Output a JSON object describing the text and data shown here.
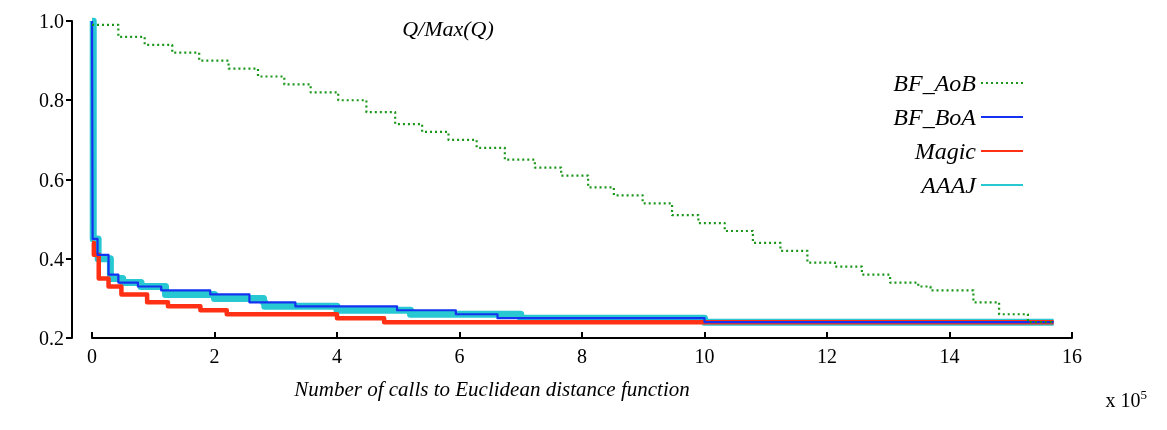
{
  "chart_data": {
    "type": "step",
    "title": "Q/Max(Q)",
    "xlabel": "Number of calls to Euclidean distance function",
    "annotations": [
      "x 10$^{5}$"
    ],
    "xlim": [
      0,
      16
    ],
    "xticks": [
      0,
      2,
      4,
      6,
      8,
      10,
      12,
      14,
      16
    ],
    "ylim": [
      0.2,
      1.0
    ],
    "yticks": [
      0.2,
      0.4,
      0.6,
      0.8,
      {
        "value": 1.0,
        "label": "1.0"
      }
    ],
    "grid": false,
    "legend": "top right",
    "marker": "none",
    "series": [
      {
        "name": "BF_AoB",
        "color": "#1a961a",
        "line_style": "dotted",
        "x": [
          0,
          0.43,
          0.86,
          1.31,
          1.75,
          2.23,
          2.71,
          3.14,
          3.57,
          4.02,
          4.48,
          4.95,
          5.39,
          5.82,
          6.28,
          6.74,
          7.23,
          7.66,
          8.1,
          8.52,
          8.99,
          9.47,
          9.9,
          10.33,
          10.79,
          11.24,
          11.68,
          12.13,
          12.57,
          13.03,
          13.49,
          13.69,
          14.39,
          14.81,
          15.28,
          15.71
        ],
        "values": [
          0.99,
          0.96,
          0.94,
          0.92,
          0.9,
          0.88,
          0.86,
          0.84,
          0.82,
          0.8,
          0.77,
          0.74,
          0.72,
          0.7,
          0.68,
          0.65,
          0.63,
          0.61,
          0.58,
          0.56,
          0.54,
          0.51,
          0.49,
          0.47,
          0.44,
          0.42,
          0.39,
          0.38,
          0.36,
          0.34,
          0.33,
          0.32,
          0.29,
          0.26,
          0.24,
          0.24
        ]
      },
      {
        "name": "BF_BoA",
        "color": "#1432f0",
        "line_style": "solid",
        "x": [
          0,
          0.01,
          0.09,
          0.27,
          0.43,
          0.75,
          1.13,
          1.93,
          2.57,
          3.27,
          3.32,
          4.98,
          5.94,
          6.62,
          8.6,
          10,
          12,
          14,
          15.7
        ],
        "values": [
          1.0,
          0.45,
          0.41,
          0.36,
          0.34,
          0.33,
          0.32,
          0.31,
          0.29,
          0.29,
          0.28,
          0.27,
          0.26,
          0.25,
          0.25,
          0.24,
          0.24,
          0.24,
          0.24
        ]
      },
      {
        "name": "Magic",
        "color": "#ff3014",
        "line_style": "solid",
        "x": [
          0,
          0.03,
          0.11,
          0.27,
          0.48,
          0.9,
          1.24,
          1.77,
          2.2,
          3.1,
          4.0,
          4.77,
          5.88,
          15.7
        ],
        "values": [
          0.44,
          0.41,
          0.35,
          0.33,
          0.31,
          0.29,
          0.28,
          0.27,
          0.26,
          0.26,
          0.25,
          0.24,
          0.24,
          0.24
        ]
      },
      {
        "name": "AAAJ",
        "color": "#28c8d2",
        "line_style": "solid",
        "x": [
          0,
          0.02,
          0.1,
          0.3,
          0.5,
          0.8,
          1.2,
          2,
          2.8,
          2.82,
          4,
          5.2,
          6,
          7,
          8.6,
          10,
          12,
          15.7
        ],
        "values": [
          1.0,
          0.45,
          0.4,
          0.35,
          0.34,
          0.33,
          0.31,
          0.3,
          0.29,
          0.28,
          0.27,
          0.26,
          0.26,
          0.25,
          0.25,
          0.24,
          0.24,
          0.24
        ]
      }
    ]
  }
}
